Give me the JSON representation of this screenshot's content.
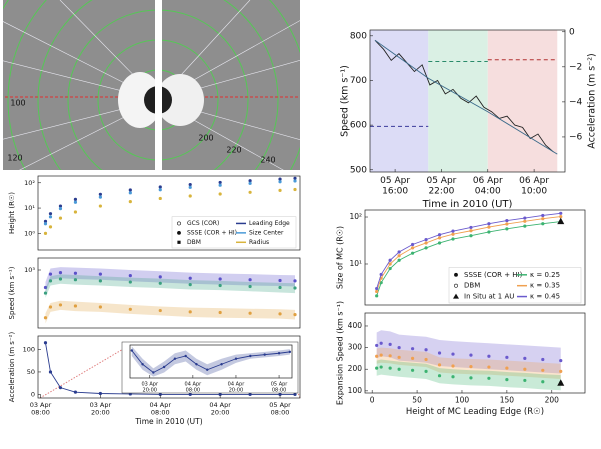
{
  "image": {
    "labels": [
      "100",
      "120",
      "200",
      "220",
      "240"
    ]
  },
  "chart_data": [
    {
      "type": "line",
      "xlim": [
        12.75,
        38
      ],
      "xticks": [
        {
          "value": 16,
          "label": [
            "05 Apr",
            "16:00"
          ]
        },
        {
          "value": 22,
          "label": [
            "05 Apr",
            "22:00"
          ]
        },
        {
          "value": 28,
          "label": [
            "06 Apr",
            "04:00"
          ]
        },
        {
          "value": 34,
          "label": [
            "06 Apr",
            "10:00"
          ]
        }
      ],
      "xlabel": "Time in 2010 (UT)",
      "ylim": [
        495,
        813
      ],
      "yticks": [
        500,
        600,
        700,
        800
      ],
      "ylabel": "Speed (km s⁻¹)",
      "y2lim": [
        -8,
        0.1
      ],
      "y2ticks": [
        0,
        {
          "value": -2,
          "label": "−2"
        },
        {
          "value": -4,
          "label": "−4"
        },
        {
          "value": -6,
          "label": "−6"
        }
      ],
      "y2label": "Acceleration (m s⁻²)",
      "regions": [
        {
          "xlim": [
            12.75,
            20.3
          ],
          "color": "#dcdcf6"
        },
        {
          "xlim": [
            20.3,
            28
          ],
          "color": "#daf0e4"
        },
        {
          "xlim": [
            28,
            37
          ],
          "color": "#f6dede"
        }
      ],
      "series": [
        {
          "color": "#222222",
          "style": "line",
          "x": [
            13.4,
            14.5,
            15.5,
            16.5,
            17.5,
            18.5,
            19.5,
            20.5,
            21.5,
            22.5,
            23.5,
            24.5,
            25.5,
            26.5,
            27.5,
            28.5,
            29.5,
            30.5,
            31.5,
            32.5,
            33.5,
            34.5,
            35.5,
            36.5
          ],
          "values": [
            790,
            770,
            745,
            760,
            740,
            720,
            735,
            690,
            700,
            670,
            680,
            660,
            650,
            665,
            640,
            630,
            615,
            620,
            600,
            595,
            570,
            580,
            555,
            540
          ]
        },
        {
          "color": "#3a6a8a",
          "style": "line",
          "x": [
            13.4,
            20.3,
            28,
            37
          ],
          "values": [
            790,
            705,
            630,
            535
          ]
        },
        {
          "color": "#3a3a9a",
          "style": "dashed",
          "axis": "y2",
          "x": [
            12.75,
            20.3
          ],
          "values": [
            -5.4,
            -5.4
          ]
        },
        {
          "color": "#2a8a6a",
          "style": "dashed",
          "axis": "y2",
          "x": [
            20.3,
            28
          ],
          "values": [
            -1.7,
            -1.7
          ]
        },
        {
          "color": "#b03030",
          "style": "dashed",
          "axis": "y2",
          "x": [
            28,
            37
          ],
          "values": [
            -1.6,
            -1.6
          ]
        }
      ]
    },
    {
      "type": "line",
      "xlim": [
        7.5,
        60
      ],
      "ylog": true,
      "ylim": [
        0.22,
        185
      ],
      "yticks": [
        {
          "value": 1,
          "label": "10⁰"
        },
        {
          "value": 10,
          "label": "10¹"
        },
        {
          "value": 100,
          "label": "10²"
        }
      ],
      "ylabel": "Height (R☉)",
      "legend": "lower right",
      "legend_markers": [
        {
          "label": "GCS (COR)",
          "marker": "circle-open"
        },
        {
          "label": "SSSE (COR + HI)",
          "marker": "circle"
        },
        {
          "label": "DBM",
          "marker": "square"
        }
      ],
      "series": [
        {
          "name": "Leading Edge",
          "color": "#2a3c8f",
          "style": "dots",
          "x": [
            9,
            10,
            12,
            15,
            20,
            26,
            32,
            38,
            44,
            50,
            56,
            59
          ],
          "values": [
            3,
            6,
            12,
            22,
            35,
            52,
            68,
            85,
            103,
            120,
            140,
            150
          ]
        },
        {
          "name": "Size Center",
          "color": "#4a9ad8",
          "style": "dots",
          "x": [
            9,
            10,
            12,
            15,
            20,
            26,
            32,
            38,
            44,
            50,
            56,
            59
          ],
          "values": [
            2.4,
            4.5,
            9.5,
            17,
            27,
            40,
            53,
            66,
            80,
            95,
            110,
            118
          ]
        },
        {
          "name": "Radius",
          "color": "#d8b43c",
          "style": "dots",
          "x": [
            9,
            10,
            12,
            15,
            20,
            26,
            32,
            38,
            44,
            50,
            56,
            59
          ],
          "values": [
            1,
            1.8,
            4,
            7,
            12,
            18,
            24,
            30,
            36,
            42,
            50,
            54
          ]
        }
      ]
    },
    {
      "type": "line",
      "xlim": [
        7.5,
        60
      ],
      "ylog": true,
      "ylim": [
        100,
        1610
      ],
      "yticks": [
        {
          "value": 1000,
          "label": "10³"
        }
      ],
      "ylabel": "Speed (km s⁻¹)",
      "series": [
        {
          "color": "#5a50c8",
          "style": "dots",
          "x": [
            9,
            10,
            12,
            15,
            20,
            26,
            32,
            38,
            44,
            50,
            56,
            59
          ],
          "values": [
            500,
            850,
            900,
            880,
            850,
            800,
            760,
            720,
            700,
            680,
            660,
            650
          ],
          "lower": [
            400,
            680,
            720,
            700,
            680,
            640,
            610,
            580,
            560,
            540,
            530,
            520
          ],
          "upper": [
            620,
            1060,
            1120,
            1100,
            1060,
            1000,
            950,
            900,
            870,
            850,
            820,
            810
          ]
        },
        {
          "color": "#3aa080",
          "style": "dots",
          "x": [
            9,
            10,
            12,
            15,
            20,
            26,
            32,
            38,
            44,
            50,
            56,
            59
          ],
          "values": [
            400,
            650,
            700,
            680,
            650,
            620,
            590,
            560,
            540,
            520,
            500,
            490
          ],
          "lower": [
            330,
            540,
            580,
            560,
            540,
            510,
            490,
            460,
            450,
            430,
            410,
            400
          ],
          "upper": [
            480,
            780,
            840,
            820,
            780,
            740,
            710,
            670,
            650,
            620,
            600,
            590
          ]
        },
        {
          "color": "#e0a040",
          "style": "dots",
          "x": [
            9,
            10,
            12,
            15,
            20,
            26,
            32,
            38,
            44,
            50,
            56,
            59
          ],
          "values": [
            150,
            230,
            250,
            240,
            230,
            210,
            200,
            190,
            185,
            180,
            175,
            170
          ],
          "lower": [
            120,
            190,
            205,
            195,
            190,
            175,
            165,
            155,
            150,
            148,
            145,
            140
          ],
          "upper": [
            180,
            270,
            295,
            285,
            270,
            250,
            235,
            225,
            220,
            215,
            210,
            205
          ]
        }
      ]
    },
    {
      "type": "line",
      "xlim": [
        7.5,
        60
      ],
      "ylim": [
        -8,
        130
      ],
      "yticks": [
        0,
        50,
        100
      ],
      "ylabel": "Acceleration (m s⁻²)",
      "xticks": [
        {
          "value": 8,
          "label": [
            "03 Apr",
            "08:00"
          ]
        },
        {
          "value": 20,
          "label": [
            "03 Apr",
            "20:00"
          ]
        },
        {
          "value": 32,
          "label": [
            "04 Apr",
            "08:00"
          ]
        },
        {
          "value": 44,
          "label": [
            "04 Apr",
            "20:00"
          ]
        },
        {
          "value": 56,
          "label": [
            "05 Apr",
            "08:00"
          ]
        }
      ],
      "xlabel": "Time in 2010 (UT)",
      "series": [
        {
          "color": "#2a3c8f",
          "style": "line-dots",
          "x": [
            9,
            10,
            12,
            15,
            20,
            26,
            32,
            38,
            44,
            50,
            56,
            59
          ],
          "values": [
            115,
            50,
            15,
            5,
            2,
            1,
            0,
            0,
            0,
            0,
            0,
            0
          ]
        }
      ]
    },
    {
      "type": "line",
      "xlim": [
        14.5,
        59.6
      ],
      "ylim": [
        -8,
        4
      ],
      "xticks": [
        {
          "value": 20,
          "label": [
            "03 Apr",
            "20:00"
          ]
        },
        {
          "value": 32,
          "label": [
            "04 Apr",
            "08:00"
          ]
        },
        {
          "value": 44,
          "label": [
            "04 Apr",
            "20:00"
          ]
        },
        {
          "value": 56,
          "label": [
            "05 Apr",
            "08:00"
          ]
        }
      ],
      "series": [
        {
          "color": "#2a3c8f",
          "style": "line-dots",
          "x": [
            15,
            18,
            21,
            24,
            27,
            30,
            33,
            36,
            40,
            44,
            48,
            52,
            56,
            59
          ],
          "values": [
            2,
            -3,
            -6,
            -4,
            -1,
            0,
            -3,
            -5,
            -3,
            -1,
            0,
            0.5,
            1,
            1.5
          ],
          "lower": [
            0,
            -5,
            -7.5,
            -6,
            -3,
            -2,
            -5,
            -7,
            -5,
            -2.5,
            -1,
            -0.5,
            0,
            0.5
          ],
          "upper": [
            3.5,
            -1,
            -4.5,
            -2,
            1,
            2,
            -1,
            -3,
            -1,
            0.5,
            1,
            1.5,
            2,
            2.5
          ]
        }
      ]
    },
    {
      "type": "line",
      "xlim": [
        -8,
        237
      ],
      "ylog": true,
      "ylim": [
        1.34,
        141
      ],
      "yticks": [
        {
          "value": 10,
          "label": "10¹"
        },
        {
          "value": 100,
          "label": "10²"
        }
      ],
      "ylabel": "Size of MC (R☉)",
      "legend": "lower right",
      "legend_markers": [
        {
          "label": "SSSE (COR + HI)",
          "marker": "circle"
        },
        {
          "label": "DBM",
          "marker": "circle-open"
        }
      ],
      "series": [
        {
          "name": "In Situ at 1 AU",
          "color": "#111111",
          "style": "triangle",
          "x": [
            210
          ],
          "values": [
            80
          ]
        },
        {
          "name": "κ = 0.25",
          "color": "#3cb371",
          "style": "line-dots",
          "x": [
            5,
            10,
            20,
            30,
            45,
            60,
            75,
            90,
            110,
            130,
            150,
            170,
            190,
            210
          ],
          "values": [
            2.1,
            4,
            8,
            12,
            17,
            22,
            28,
            34,
            40,
            48,
            56,
            64,
            72,
            80
          ]
        },
        {
          "name": "κ = 0.35",
          "color": "#f0a050",
          "style": "line-dots",
          "x": [
            5,
            10,
            20,
            30,
            45,
            60,
            75,
            90,
            110,
            130,
            150,
            170,
            190,
            210
          ],
          "values": [
            2.6,
            5,
            10,
            15,
            22,
            28,
            36,
            43,
            51,
            61,
            71,
            81,
            92,
            102
          ]
        },
        {
          "name": "κ = 0.45",
          "color": "#6a5acd",
          "style": "line-dots",
          "x": [
            5,
            10,
            20,
            30,
            45,
            60,
            75,
            90,
            110,
            130,
            150,
            170,
            190,
            210
          ],
          "values": [
            3,
            6,
            12,
            18,
            26,
            33,
            42,
            50,
            60,
            72,
            84,
            95,
            108,
            120
          ]
        }
      ]
    },
    {
      "type": "line",
      "xlim": [
        -8,
        237
      ],
      "ylim": [
        90,
        460
      ],
      "yticks": [
        100,
        200,
        300,
        400
      ],
      "ylabel": "Expansion Speed (km s⁻¹)",
      "xticks": [
        0,
        50,
        100,
        150,
        200
      ],
      "xlabel": "Height of MC Leading Edge (R☉)",
      "series": [
        {
          "color": "#6a5acd",
          "style": "dots",
          "x": [
            5,
            10,
            20,
            30,
            45,
            60,
            75,
            90,
            110,
            130,
            150,
            170,
            190,
            210
          ],
          "values": [
            310,
            320,
            315,
            300,
            295,
            290,
            275,
            270,
            265,
            260,
            255,
            250,
            245,
            240
          ],
          "lower": [
            250,
            260,
            255,
            240,
            235,
            230,
            215,
            210,
            205,
            200,
            195,
            190,
            185,
            180
          ],
          "upper": [
            370,
            380,
            375,
            360,
            355,
            350,
            335,
            330,
            325,
            320,
            315,
            310,
            305,
            300
          ]
        },
        {
          "color": "#f0a050",
          "style": "dots",
          "x": [
            5,
            10,
            20,
            30,
            45,
            60,
            75,
            90,
            110,
            130,
            150,
            170,
            190,
            210
          ],
          "values": [
            260,
            265,
            262,
            255,
            250,
            245,
            220,
            215,
            212,
            210,
            205,
            200,
            195,
            190
          ],
          "lower": [
            225,
            230,
            227,
            220,
            215,
            210,
            185,
            180,
            177,
            175,
            170,
            165,
            160,
            155
          ],
          "upper": [
            295,
            300,
            297,
            290,
            285,
            280,
            255,
            250,
            247,
            245,
            240,
            235,
            230,
            225
          ]
        },
        {
          "color": "#3cb371",
          "style": "dots",
          "x": [
            5,
            10,
            20,
            30,
            45,
            60,
            75,
            90,
            110,
            130,
            150,
            170,
            190,
            210
          ],
          "values": [
            205,
            210,
            205,
            200,
            195,
            190,
            170,
            165,
            160,
            158,
            152,
            148,
            142,
            138
          ],
          "lower": [
            170,
            175,
            170,
            165,
            160,
            155,
            135,
            130,
            125,
            123,
            117,
            113,
            107,
            103
          ],
          "upper": [
            240,
            245,
            240,
            235,
            230,
            225,
            205,
            200,
            195,
            193,
            187,
            183,
            177,
            173
          ]
        },
        {
          "color": "#111111",
          "style": "triangle",
          "x": [
            210
          ],
          "values": [
            135
          ]
        }
      ]
    }
  ]
}
